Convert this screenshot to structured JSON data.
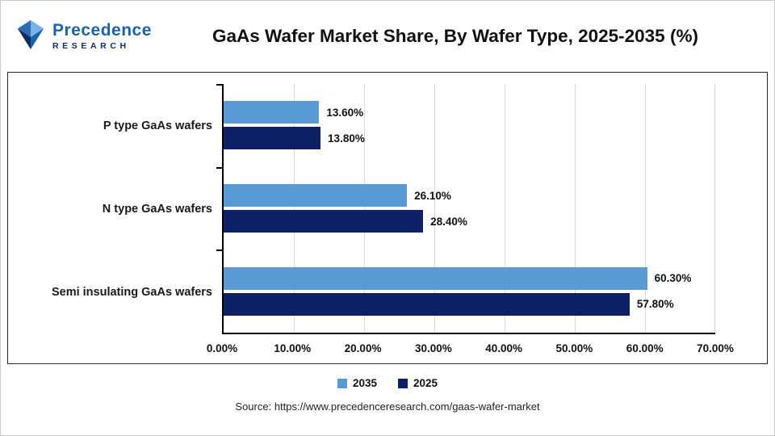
{
  "logo": {
    "line1": "Precedence",
    "line2": "RESEARCH"
  },
  "header": {
    "title": "GaAs Wafer Market Share, By Wafer Type, 2025-2035 (%)"
  },
  "chart_data": {
    "type": "bar",
    "orientation": "horizontal",
    "title": "GaAs Wafer Market Share, By Wafer Type, 2025-2035 (%)",
    "xlabel": "",
    "ylabel": "",
    "categories": [
      "P type GaAs wafers",
      "N type GaAs wafers",
      "Semi insulating GaAs wafers"
    ],
    "series": [
      {
        "name": "2035",
        "color": "#5B9BD5",
        "values": [
          13.6,
          26.1,
          60.3
        ],
        "labels": [
          "13.60%",
          "26.10%",
          "60.30%"
        ]
      },
      {
        "name": "2025",
        "color": "#0E2167",
        "values": [
          13.8,
          28.4,
          57.8
        ],
        "labels": [
          "13.80%",
          "28.40%",
          "57.80%"
        ]
      }
    ],
    "x_axis": {
      "min": 0,
      "max": 70,
      "ticks": [
        "0.00%",
        "10.00%",
        "20.00%",
        "30.00%",
        "40.00%",
        "50.00%",
        "60.00%",
        "70.00%"
      ]
    },
    "grid": true,
    "legend_position": "bottom"
  },
  "footer": {
    "source": "Source: https://www.precedenceresearch.com/gaas-wafer-market"
  }
}
